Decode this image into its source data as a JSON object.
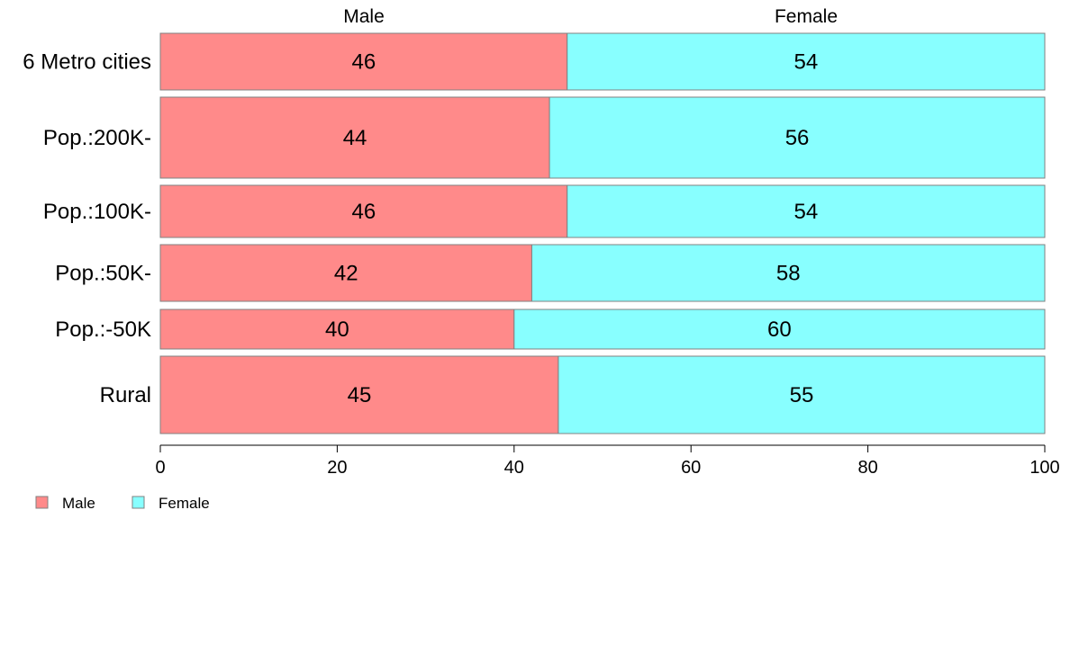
{
  "chart_data": {
    "type": "bar",
    "orientation": "horizontal",
    "stacked": true,
    "categories": [
      "6 Metro cities",
      "Pop.:200K-",
      "Pop.:100K-",
      "Pop.:50K-",
      "Pop.:-50K",
      "Rural"
    ],
    "series": [
      {
        "name": "Male",
        "values": [
          46,
          44,
          46,
          42,
          40,
          45
        ]
      },
      {
        "name": "Female",
        "values": [
          54,
          56,
          54,
          58,
          60,
          55
        ]
      }
    ],
    "xlim": [
      0,
      100
    ],
    "xticks": [
      0,
      20,
      40,
      60,
      80,
      100
    ],
    "column_labels": [
      "Male",
      "Female"
    ],
    "legend": {
      "placement": "bottom-left",
      "entries": [
        "Male",
        "Female"
      ]
    },
    "colors": {
      "Male": "#FF8A8A",
      "Female": "#88FFFF",
      "border": "#808080"
    },
    "grid": false
  }
}
